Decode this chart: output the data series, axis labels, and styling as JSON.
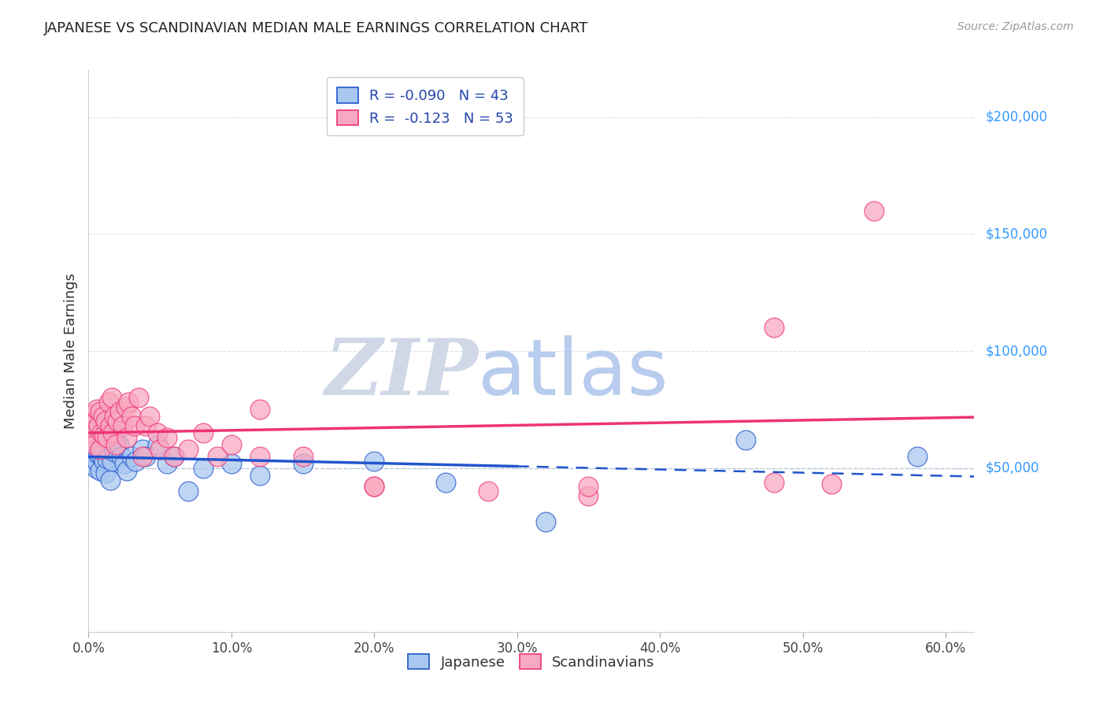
{
  "title": "JAPANESE VS SCANDINAVIAN MEDIAN MALE EARNINGS CORRELATION CHART",
  "source": "Source: ZipAtlas.com",
  "ylabel": "Median Male Earnings",
  "legend_japanese": "Japanese",
  "legend_scandinavians": "Scandinavians",
  "R_japanese": "-0.090",
  "N_japanese": "43",
  "R_scandinavians": "-0.123",
  "N_scandinavians": "53",
  "color_japanese": "#a8c8f0",
  "color_scandinavians": "#f8a8c0",
  "color_line_japanese": "#2255cc",
  "color_line_scandinavians": "#ee3377",
  "color_title": "#222222",
  "color_yticks": "#3399ff",
  "color_source": "#999999",
  "background_color": "#ffffff",
  "watermark_zip": "ZIP",
  "watermark_atlas": "atlas",
  "watermark_color_zip": "#d0d8e8",
  "watermark_color_atlas": "#b8ccee",
  "xlim": [
    0.0,
    0.62
  ],
  "ylim": [
    -20000,
    220000
  ],
  "y_tick_values": [
    200000,
    150000,
    100000,
    50000
  ],
  "y_tick_labels": [
    "$200,000",
    "$150,000",
    "$100,000",
    "$50,000"
  ],
  "japanese_x": [
    0.001,
    0.002,
    0.003,
    0.004,
    0.005,
    0.005,
    0.006,
    0.007,
    0.007,
    0.008,
    0.008,
    0.009,
    0.01,
    0.01,
    0.011,
    0.012,
    0.013,
    0.014,
    0.015,
    0.016,
    0.018,
    0.019,
    0.021,
    0.023,
    0.025,
    0.027,
    0.03,
    0.033,
    0.038,
    0.04,
    0.048,
    0.055,
    0.06,
    0.07,
    0.08,
    0.1,
    0.12,
    0.15,
    0.2,
    0.25,
    0.32,
    0.46,
    0.58
  ],
  "japanese_y": [
    52000,
    55000,
    57000,
    58000,
    61000,
    50000,
    53000,
    67000,
    56000,
    62000,
    49000,
    55000,
    59000,
    64000,
    53000,
    48000,
    54000,
    58000,
    45000,
    53000,
    57000,
    65000,
    60000,
    55000,
    52000,
    49000,
    55000,
    53000,
    58000,
    55000,
    60000,
    52000,
    55000,
    40000,
    50000,
    52000,
    47000,
    52000,
    53000,
    44000,
    27000,
    62000,
    55000
  ],
  "scandinavian_x": [
    0.001,
    0.002,
    0.003,
    0.004,
    0.004,
    0.005,
    0.006,
    0.007,
    0.008,
    0.008,
    0.009,
    0.01,
    0.011,
    0.012,
    0.013,
    0.014,
    0.015,
    0.016,
    0.017,
    0.018,
    0.019,
    0.02,
    0.022,
    0.024,
    0.026,
    0.027,
    0.028,
    0.03,
    0.032,
    0.035,
    0.038,
    0.04,
    0.043,
    0.048,
    0.05,
    0.055,
    0.06,
    0.07,
    0.08,
    0.09,
    0.1,
    0.12,
    0.15,
    0.2,
    0.28,
    0.35,
    0.48,
    0.52,
    0.55,
    0.12,
    0.2,
    0.35,
    0.48
  ],
  "scandinavian_y": [
    62000,
    68000,
    65000,
    73000,
    60000,
    70000,
    75000,
    68000,
    74000,
    58000,
    65000,
    72000,
    64000,
    70000,
    63000,
    78000,
    68000,
    80000,
    65000,
    72000,
    60000,
    70000,
    74000,
    68000,
    76000,
    63000,
    78000,
    72000,
    68000,
    80000,
    55000,
    68000,
    72000,
    65000,
    58000,
    63000,
    55000,
    58000,
    65000,
    55000,
    60000,
    75000,
    55000,
    42000,
    40000,
    38000,
    44000,
    43000,
    160000,
    55000,
    42000,
    42000,
    110000
  ]
}
